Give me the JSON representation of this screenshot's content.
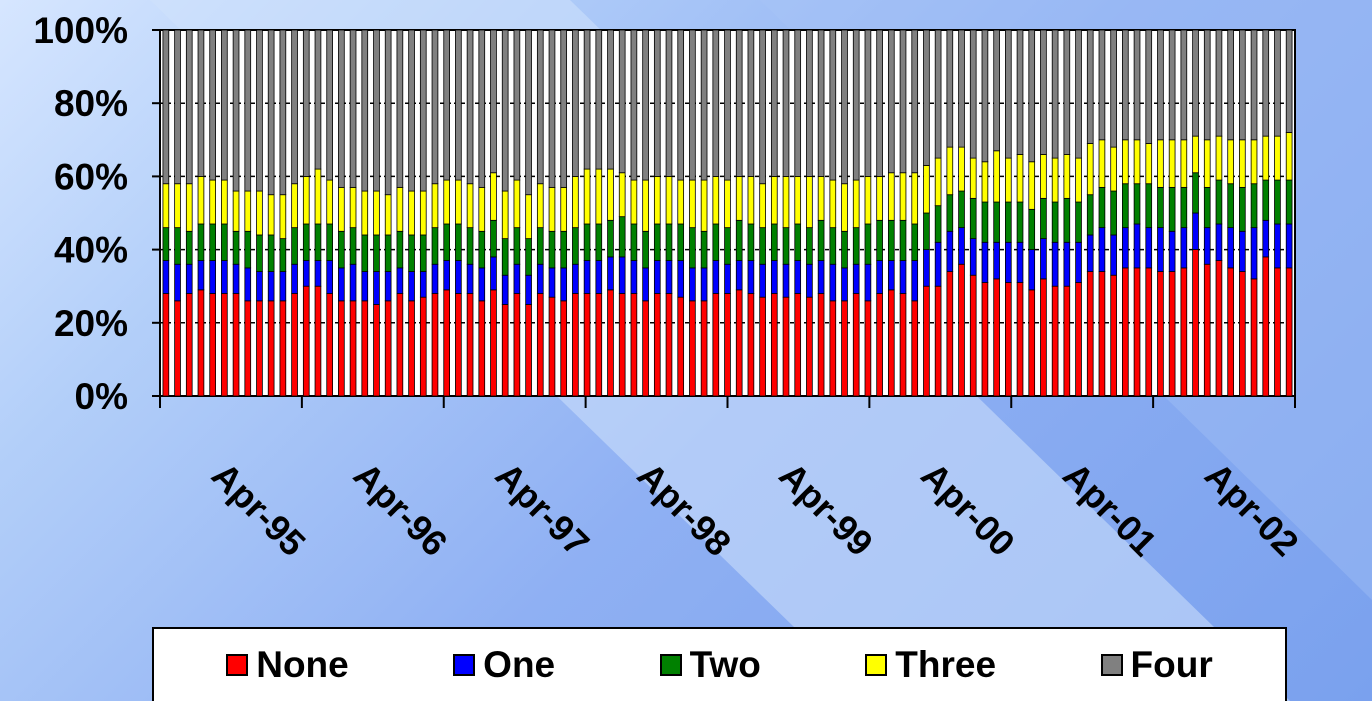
{
  "chart_data": {
    "type": "bar",
    "stacked": true,
    "percent_stacked": true,
    "title": "",
    "xlabel": "",
    "ylabel": "",
    "ylim": [
      0,
      100
    ],
    "y_ticks": [
      "0%",
      "20%",
      "40%",
      "60%",
      "80%",
      "100%"
    ],
    "x_tick_labels": [
      "Apr-95",
      "Apr-96",
      "Apr-97",
      "Apr-98",
      "Apr-99",
      "Apr-00",
      "Apr-01",
      "Apr-02"
    ],
    "grid": true,
    "legend_position": "bottom",
    "series": [
      {
        "name": "None",
        "color": "#ff0000",
        "values": [
          28,
          26,
          28,
          29,
          28,
          28,
          28,
          26,
          26,
          26,
          26,
          28,
          30,
          30,
          28,
          26,
          26,
          26,
          25,
          26,
          28,
          26,
          27,
          28,
          29,
          28,
          28,
          26,
          29,
          25,
          28,
          25,
          28,
          27,
          26,
          28,
          28,
          28,
          29,
          28,
          28,
          26,
          28,
          28,
          27,
          26,
          26,
          28,
          28,
          29,
          28,
          27,
          28,
          27,
          28,
          27,
          28,
          26,
          26,
          28,
          26,
          28,
          29,
          28,
          26,
          30,
          30,
          34,
          36,
          33,
          31,
          32,
          31,
          31,
          29,
          32,
          30,
          30,
          31,
          34,
          34,
          33,
          35,
          35,
          35,
          34,
          34,
          35,
          40,
          36,
          37,
          35,
          34,
          32,
          38,
          35,
          35
        ]
      },
      {
        "name": "One",
        "color": "#0000ff",
        "values": [
          9,
          10,
          8,
          8,
          9,
          9,
          8,
          9,
          8,
          8,
          8,
          8,
          7,
          7,
          9,
          9,
          10,
          8,
          9,
          8,
          7,
          8,
          7,
          8,
          8,
          9,
          8,
          9,
          9,
          8,
          8,
          8,
          8,
          8,
          9,
          8,
          9,
          9,
          9,
          10,
          9,
          9,
          9,
          9,
          10,
          9,
          9,
          9,
          8,
          8,
          9,
          9,
          9,
          9,
          9,
          9,
          9,
          10,
          9,
          8,
          10,
          9,
          8,
          9,
          11,
          10,
          12,
          11,
          10,
          10,
          11,
          10,
          11,
          11,
          11,
          11,
          12,
          12,
          11,
          10,
          12,
          11,
          11,
          12,
          11,
          12,
          11,
          11,
          10,
          10,
          10,
          11,
          11,
          14,
          10,
          12,
          12
        ]
      },
      {
        "name": "Two",
        "color": "#008000",
        "values": [
          9,
          10,
          9,
          10,
          10,
          10,
          9,
          10,
          10,
          10,
          9,
          10,
          10,
          10,
          10,
          10,
          10,
          10,
          10,
          10,
          10,
          10,
          10,
          10,
          10,
          10,
          10,
          10,
          10,
          10,
          10,
          10,
          10,
          10,
          10,
          10,
          10,
          10,
          10,
          11,
          10,
          10,
          10,
          10,
          10,
          11,
          10,
          10,
          10,
          11,
          10,
          10,
          10,
          10,
          10,
          10,
          11,
          10,
          10,
          10,
          11,
          11,
          11,
          11,
          10,
          10,
          10,
          10,
          10,
          11,
          11,
          11,
          11,
          11,
          11,
          11,
          11,
          12,
          11,
          11,
          11,
          12,
          12,
          11,
          12,
          11,
          12,
          11,
          11,
          11,
          12,
          12,
          12,
          12,
          11,
          12,
          12
        ]
      },
      {
        "name": "Three",
        "color": "#ffff00",
        "values": [
          12,
          12,
          13,
          13,
          12,
          12,
          11,
          11,
          12,
          11,
          12,
          12,
          13,
          15,
          12,
          12,
          11,
          12,
          12,
          11,
          12,
          12,
          12,
          12,
          12,
          12,
          12,
          12,
          13,
          13,
          13,
          12,
          12,
          12,
          12,
          14,
          15,
          15,
          14,
          12,
          12,
          14,
          13,
          13,
          12,
          13,
          14,
          13,
          13,
          12,
          13,
          12,
          13,
          14,
          13,
          14,
          12,
          13,
          13,
          13,
          13,
          12,
          13,
          13,
          14,
          13,
          13,
          13,
          12,
          11,
          11,
          14,
          12,
          13,
          13,
          12,
          12,
          12,
          12,
          14,
          13,
          12,
          12,
          12,
          11,
          13,
          13,
          13,
          10,
          13,
          12,
          12,
          13,
          12,
          12,
          12,
          13
        ]
      },
      {
        "name": "Four",
        "color": "#808080",
        "values": [
          42,
          42,
          42,
          40,
          41,
          41,
          44,
          44,
          44,
          45,
          45,
          42,
          40,
          38,
          41,
          43,
          43,
          44,
          44,
          45,
          43,
          44,
          44,
          42,
          41,
          41,
          42,
          43,
          39,
          44,
          41,
          45,
          42,
          43,
          43,
          40,
          38,
          38,
          38,
          39,
          41,
          41,
          40,
          40,
          41,
          41,
          41,
          40,
          41,
          40,
          40,
          42,
          40,
          40,
          40,
          40,
          40,
          41,
          42,
          41,
          40,
          40,
          39,
          39,
          39,
          37,
          35,
          32,
          32,
          35,
          36,
          33,
          35,
          34,
          36,
          34,
          35,
          34,
          35,
          31,
          30,
          32,
          30,
          30,
          31,
          30,
          30,
          30,
          29,
          30,
          29,
          30,
          30,
          30,
          29,
          29,
          28
        ]
      }
    ]
  }
}
